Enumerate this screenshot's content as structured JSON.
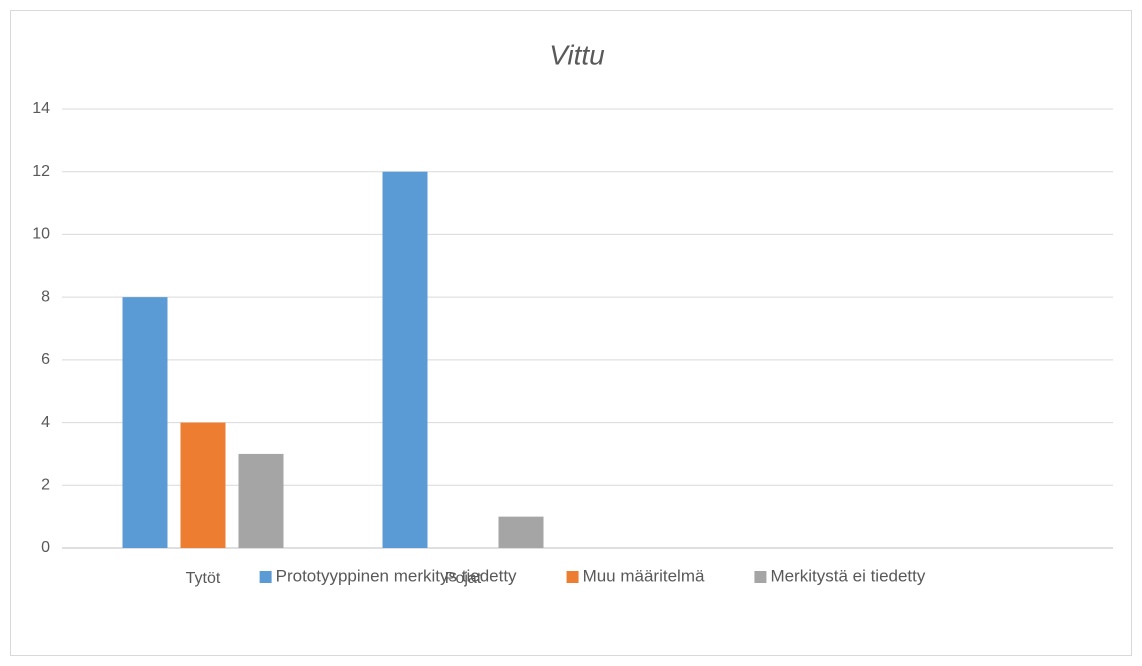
{
  "chart_data": {
    "type": "bar",
    "title": "Vittu",
    "categories": [
      "Tytöt",
      "Pojat",
      null,
      null
    ],
    "series": [
      {
        "name": "Prototyyppinen merkitys tiedetty",
        "color": "#5b9bd5",
        "values": [
          8,
          12,
          null,
          null
        ]
      },
      {
        "name": "Muu määritelmä",
        "color": "#ed7d31",
        "values": [
          4,
          0,
          null,
          null
        ]
      },
      {
        "name": "Merkitystä ei tiedetty",
        "color": "#a5a5a5",
        "values": [
          3,
          1,
          null,
          null
        ]
      }
    ],
    "ylim": [
      0,
      14
    ],
    "yticks": [
      0,
      2,
      4,
      6,
      8,
      10,
      12,
      14
    ],
    "grid": true,
    "legend": "bottom"
  }
}
